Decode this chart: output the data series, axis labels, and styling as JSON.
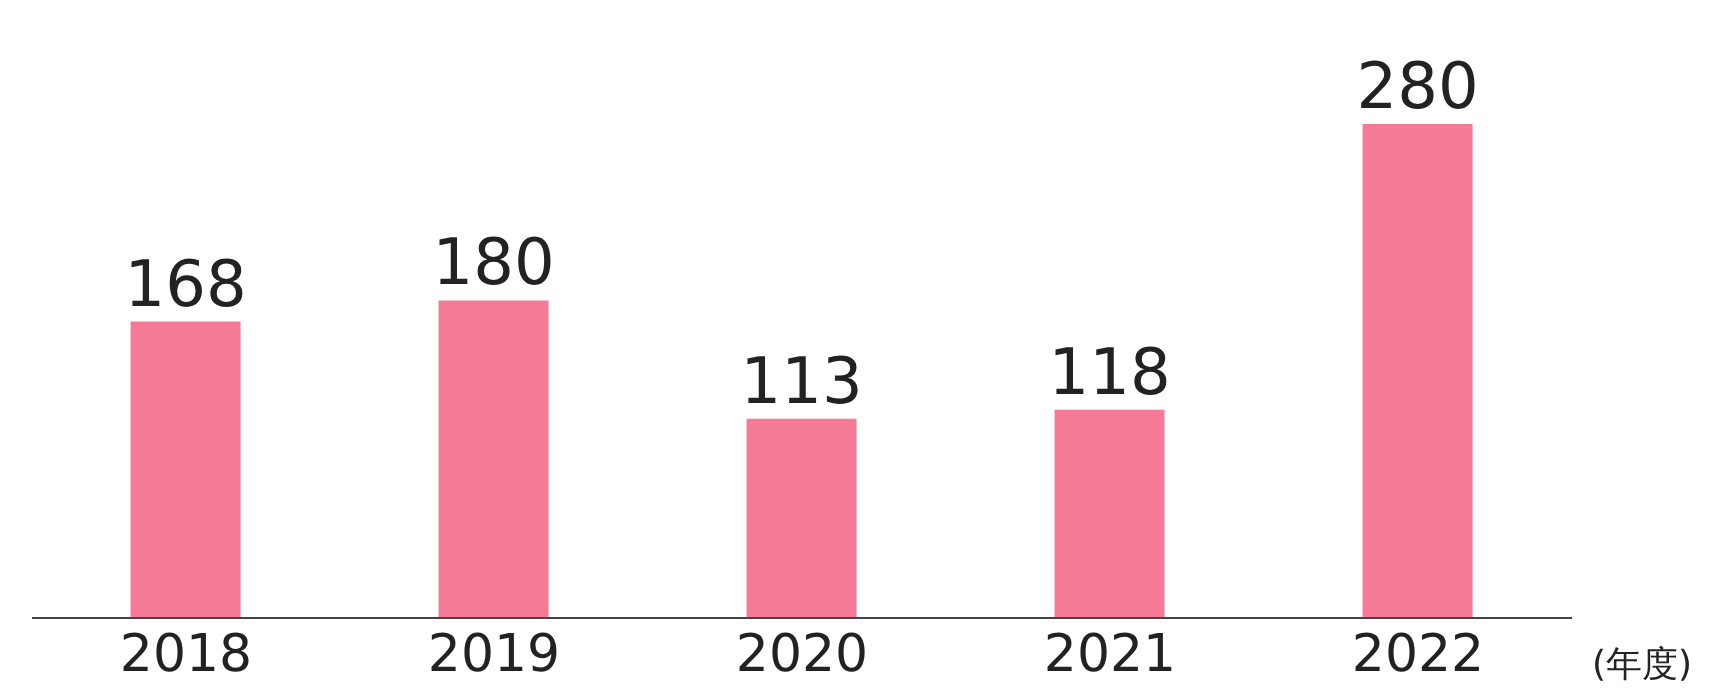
{
  "chart_data": {
    "type": "bar",
    "xlabel": "(年度)",
    "categories": [
      "2018",
      "2019",
      "2020",
      "2021",
      "2022"
    ],
    "values": [
      168,
      180,
      113,
      118,
      280
    ],
    "color": "#f47a96",
    "data_labels": true
  }
}
